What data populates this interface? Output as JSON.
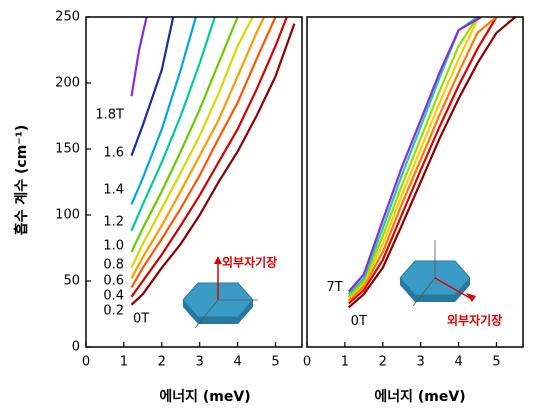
{
  "chart_data": [
    {
      "type": "line",
      "y_label": "흡수 계수 (cm⁻¹)",
      "x_label": "에너지 (meV)",
      "xlim": [
        0,
        5.7
      ],
      "xticks": [
        0,
        1,
        2,
        3,
        4,
        5
      ],
      "ylim": [
        0,
        250
      ],
      "yticks": [
        0,
        50,
        100,
        150,
        200,
        250
      ],
      "annotation": "외부자기장",
      "series": [
        {
          "name": "0T",
          "color": "#8b0000",
          "x": [
            1.2,
            1.5,
            2,
            2.5,
            3,
            3.5,
            4,
            4.5,
            5,
            5.5
          ],
          "values": [
            32,
            40,
            60,
            78,
            100,
            125,
            148,
            175,
            205,
            245
          ]
        },
        {
          "name": "0.2",
          "color": "#d40000",
          "x": [
            1.2,
            1.5,
            2,
            2.5,
            3,
            3.5,
            4,
            4.5,
            5,
            5.3
          ],
          "values": [
            38,
            50,
            70,
            92,
            115,
            140,
            165,
            195,
            228,
            250
          ]
        },
        {
          "name": "0.4",
          "color": "#ff5500",
          "x": [
            1.2,
            1.5,
            2,
            2.5,
            3,
            3.5,
            4,
            4.5,
            5
          ],
          "values": [
            45,
            60,
            82,
            105,
            130,
            158,
            185,
            218,
            250
          ]
        },
        {
          "name": "0.6",
          "color": "#ff9900",
          "x": [
            1.2,
            1.5,
            2,
            2.5,
            3,
            3.5,
            4,
            4.5,
            4.7
          ],
          "values": [
            52,
            68,
            92,
            118,
            145,
            172,
            205,
            238,
            250
          ]
        },
        {
          "name": "0.8",
          "color": "#d8d800",
          "x": [
            1.2,
            1.5,
            2,
            2.5,
            3,
            3.5,
            4,
            4.4
          ],
          "values": [
            60,
            78,
            105,
            132,
            160,
            192,
            228,
            250
          ]
        },
        {
          "name": "1.0",
          "color": "#66cc00",
          "x": [
            1.2,
            1.5,
            2,
            2.5,
            3,
            3.5,
            4
          ],
          "values": [
            72,
            90,
            118,
            148,
            180,
            215,
            250
          ]
        },
        {
          "name": "1.2",
          "color": "#00cc99",
          "x": [
            1.2,
            1.5,
            2,
            2.5,
            3,
            3.4
          ],
          "values": [
            88,
            108,
            140,
            175,
            215,
            250
          ]
        },
        {
          "name": "1.4",
          "color": "#00a8e0",
          "x": [
            1.2,
            1.5,
            2,
            2.5,
            2.9
          ],
          "values": [
            108,
            128,
            165,
            210,
            250
          ]
        },
        {
          "name": "1.6",
          "color": "#1a2aa8",
          "x": [
            1.2,
            1.5,
            2,
            2.3
          ],
          "values": [
            145,
            168,
            210,
            250
          ]
        },
        {
          "name": "1.8T",
          "color": "#8a2be2",
          "x": [
            1.2,
            1.4,
            1.6
          ],
          "values": [
            190,
            225,
            250
          ]
        }
      ]
    },
    {
      "type": "line",
      "x_label": "에너지 (meV)",
      "xlim": [
        0,
        5.7
      ],
      "xticks": [
        0,
        1,
        2,
        3,
        4,
        5
      ],
      "ylim": [
        0,
        250
      ],
      "annotation": "외부자기장",
      "series": [
        {
          "name": "0T",
          "color": "#8b0000",
          "x": [
            1.1,
            1.5,
            2,
            2.5,
            3,
            3.5,
            4,
            4.5,
            5,
            5.5
          ],
          "values": [
            30,
            40,
            60,
            92,
            125,
            158,
            188,
            215,
            238,
            250
          ]
        },
        {
          "color": "#e00000",
          "x": [
            1.1,
            1.5,
            2,
            2.5,
            3,
            3.5,
            4,
            4.5,
            5
          ],
          "values": [
            33,
            43,
            66,
            100,
            134,
            167,
            198,
            226,
            250
          ]
        },
        {
          "color": "#ff7700",
          "x": [
            1.1,
            1.5,
            2,
            2.5,
            3,
            3.5,
            4,
            4.5,
            5
          ],
          "values": [
            35,
            46,
            72,
            108,
            142,
            176,
            208,
            238,
            250
          ]
        },
        {
          "color": "#ffcc00",
          "x": [
            1.1,
            1.5,
            2,
            2.5,
            3,
            3.5,
            4,
            4.5
          ],
          "values": [
            37,
            48,
            78,
            115,
            150,
            185,
            218,
            248
          ]
        },
        {
          "color": "#99dd00",
          "x": [
            1.1,
            1.5,
            2,
            2.5,
            3,
            3.5,
            4,
            4.5
          ],
          "values": [
            38,
            50,
            84,
            122,
            158,
            194,
            228,
            250
          ]
        },
        {
          "color": "#22ccaa",
          "x": [
            1.1,
            1.5,
            2,
            2.5,
            3,
            3.5,
            4,
            4.5
          ],
          "values": [
            40,
            52,
            90,
            130,
            167,
            204,
            240,
            250
          ]
        },
        {
          "name": "7T",
          "color": "#8a2be2",
          "x": [
            1.1,
            1.5,
            2,
            2.5,
            3,
            3.5,
            4,
            4.6
          ],
          "values": [
            42,
            55,
            96,
            136,
            172,
            208,
            240,
            250
          ]
        }
      ]
    }
  ]
}
